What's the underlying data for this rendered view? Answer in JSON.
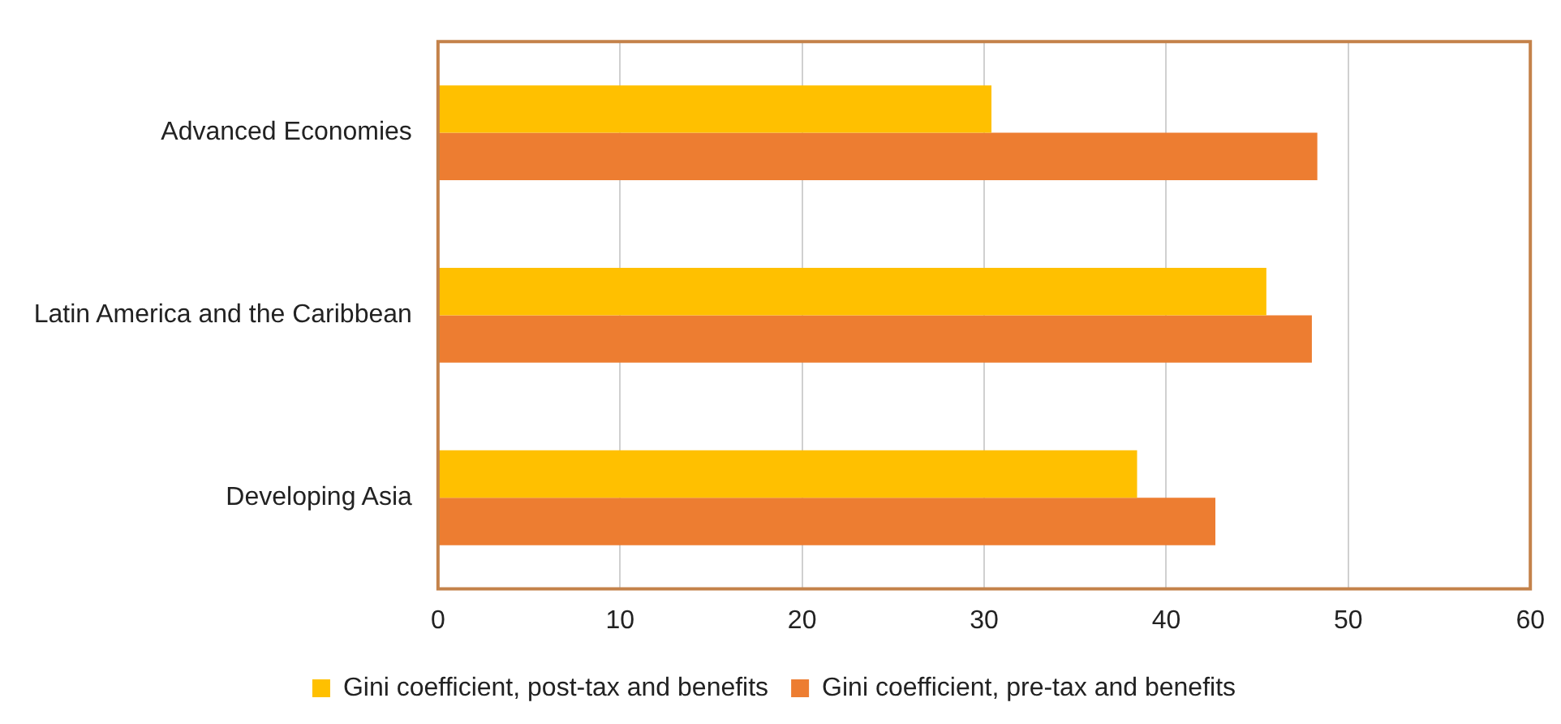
{
  "chart_data": {
    "type": "bar",
    "orientation": "horizontal",
    "categories": [
      "Advanced Economies",
      "Latin America and the Caribbean",
      "Developing Asia"
    ],
    "series": [
      {
        "name": "Gini coefficient, post-tax and benefits",
        "color": "#ffc000",
        "values": [
          30.4,
          45.5,
          38.4
        ]
      },
      {
        "name": "Gini coefficient, pre-tax and benefits",
        "color": "#ed7d31",
        "values": [
          48.3,
          48.0,
          42.7
        ]
      }
    ],
    "xlim": [
      0,
      60
    ],
    "xticks": [
      0,
      10,
      20,
      30,
      40,
      50,
      60
    ],
    "grid": "x",
    "legend": "bottom"
  }
}
